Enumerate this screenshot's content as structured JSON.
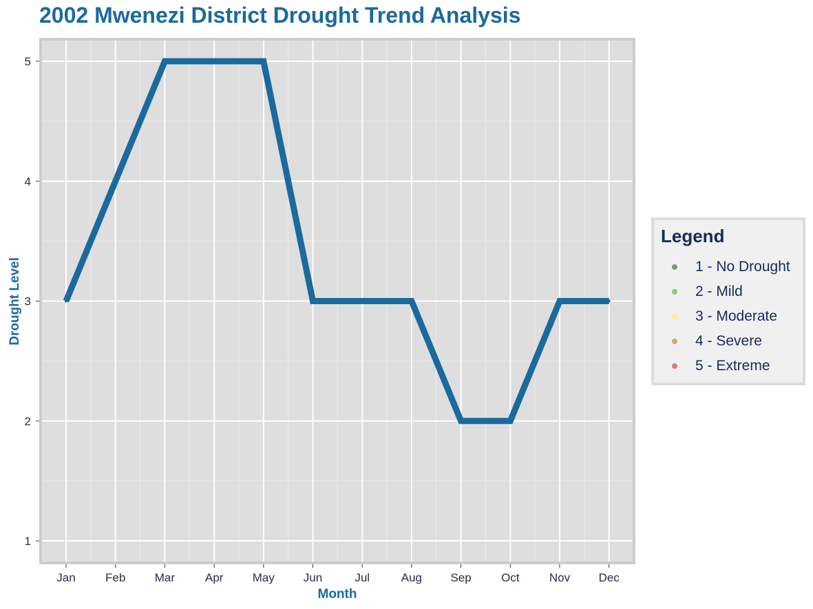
{
  "chart_data": {
    "type": "line",
    "title": "2002 Mwenezi District Drought Trend Analysis",
    "xlabel": "Month",
    "ylabel": "Drought Level",
    "categories": [
      "Jan",
      "Feb",
      "Mar",
      "Apr",
      "May",
      "Jun",
      "Jul",
      "Aug",
      "Sep",
      "Oct",
      "Nov",
      "Dec"
    ],
    "values": [
      3,
      4,
      5,
      5,
      5,
      3,
      3,
      3,
      2,
      2,
      3,
      3
    ],
    "ylim": [
      0.83,
      5.17
    ],
    "yticks": [
      1,
      2,
      3,
      4,
      5
    ],
    "grid": true,
    "line_color": "#1a6a9e",
    "legend": {
      "title": "Legend",
      "position": "right",
      "items": [
        {
          "label": "1 - No Drought",
          "color": "#4d8b5a"
        },
        {
          "label": "2 - Mild",
          "color": "#8db654"
        },
        {
          "label": "3 - Moderate",
          "color": "#f5f27a"
        },
        {
          "label": "4 - Severe",
          "color": "#e08a5a"
        },
        {
          "label": "5 - Extreme",
          "color": "#d45a5f"
        }
      ]
    }
  }
}
